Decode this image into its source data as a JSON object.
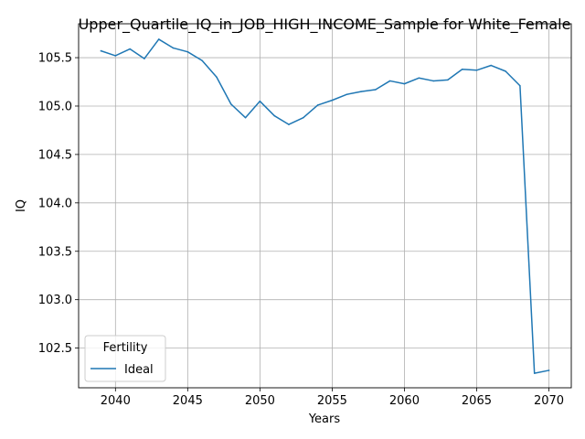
{
  "chart_data": {
    "type": "line",
    "title": "Upper_Quartile_IQ_in_JOB_HIGH_INCOME_Sample for White_Female",
    "xlabel": "Years",
    "ylabel": "IQ",
    "xlim": [
      2037.45,
      2071.55
    ],
    "ylim": [
      102.09,
      105.85
    ],
    "xticks": [
      2040,
      2045,
      2050,
      2055,
      2060,
      2065,
      2070
    ],
    "yticks": [
      102.5,
      103.0,
      103.5,
      104.0,
      104.5,
      105.0,
      105.5
    ],
    "grid": true,
    "legend": {
      "title": "Fertility",
      "location": "lower-left"
    },
    "series": [
      {
        "name": "Ideal",
        "color": "#1f77b4",
        "x": [
          2039,
          2040,
          2041,
          2042,
          2043,
          2044,
          2045,
          2046,
          2047,
          2048,
          2049,
          2050,
          2051,
          2052,
          2053,
          2054,
          2055,
          2056,
          2057,
          2058,
          2059,
          2060,
          2061,
          2062,
          2063,
          2064,
          2065,
          2066,
          2067,
          2068,
          2069,
          2070
        ],
        "values": [
          105.57,
          105.52,
          105.59,
          105.49,
          105.69,
          105.6,
          105.56,
          105.47,
          105.3,
          105.02,
          104.88,
          105.05,
          104.9,
          104.81,
          104.88,
          105.01,
          105.06,
          105.12,
          105.15,
          105.17,
          105.26,
          105.23,
          105.29,
          105.26,
          105.27,
          105.38,
          105.37,
          105.42,
          105.36,
          105.21,
          102.24,
          102.27
        ]
      }
    ]
  }
}
